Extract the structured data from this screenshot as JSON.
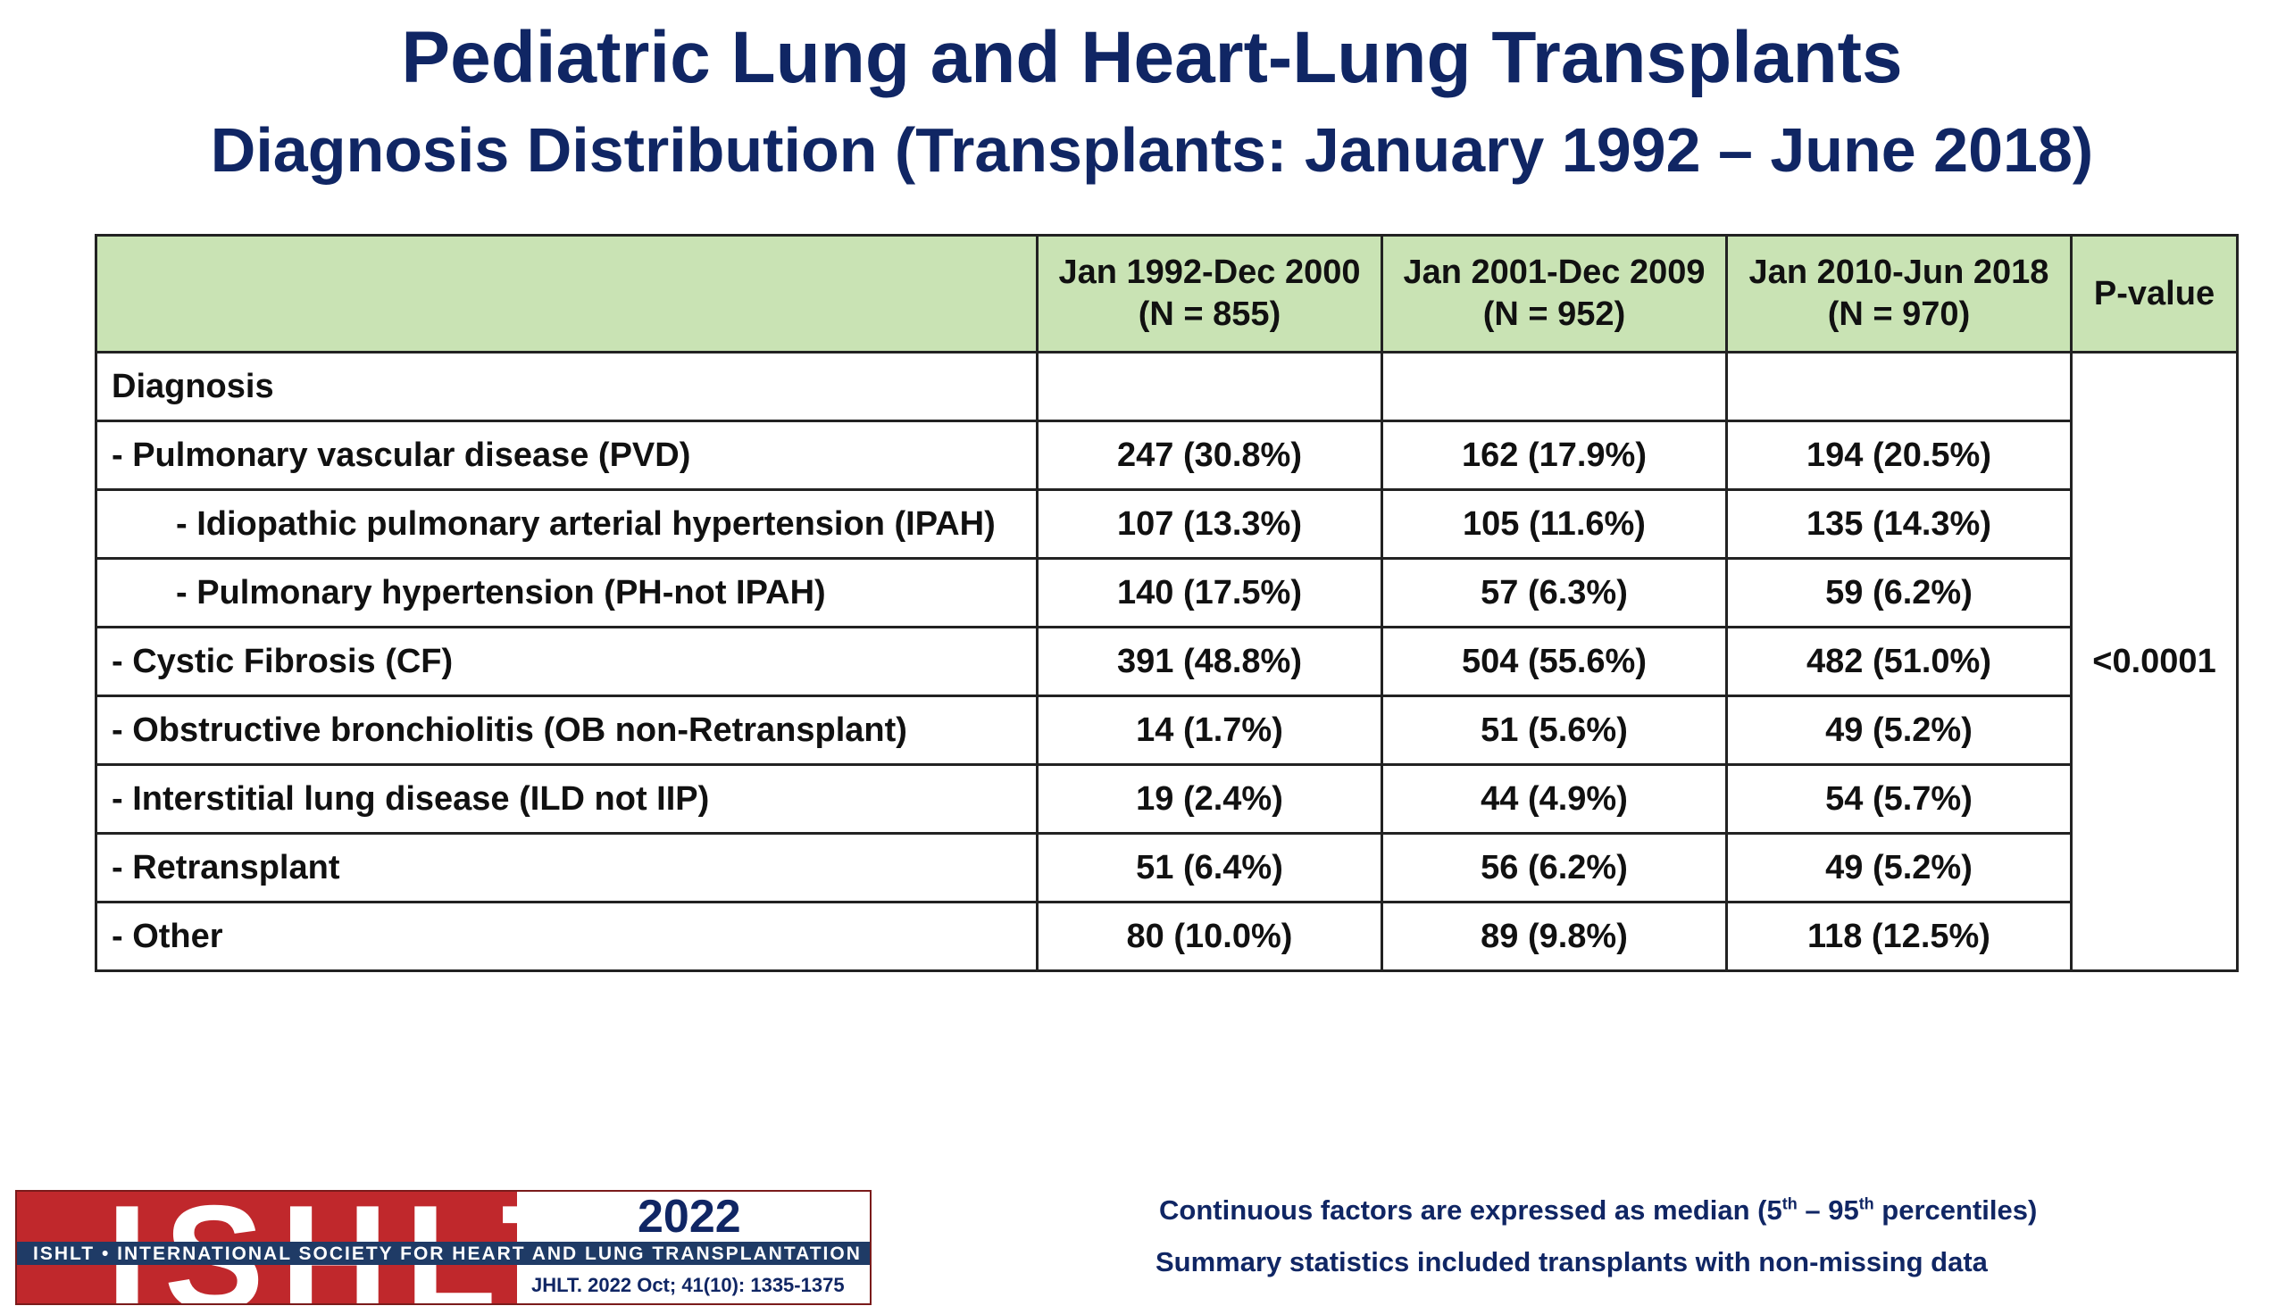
{
  "title": "Pediatric Lung and Heart-Lung Transplants",
  "subtitle": "Diagnosis Distribution (Transplants: January 1992 – June 2018)",
  "table": {
    "corner_header": "",
    "columns": [
      {
        "line1": "Jan 1992-Dec 2000",
        "line2": "(N = 855)"
      },
      {
        "line1": "Jan 2001-Dec 2009",
        "line2": "(N = 952)"
      },
      {
        "line1": "Jan 2010-Jun 2018",
        "line2": "(N = 970)"
      }
    ],
    "pvalue_header": "P-value",
    "section_label": "Diagnosis",
    "pvalue": "<0.0001",
    "rows": [
      {
        "label": "- Pulmonary vascular disease (PVD)",
        "indent": false,
        "values": [
          "247 (30.8%)",
          "162 (17.9%)",
          "194 (20.5%)"
        ]
      },
      {
        "label": "- Idiopathic pulmonary arterial hypertension (IPAH)",
        "indent": true,
        "values": [
          "107 (13.3%)",
          "105 (11.6%)",
          "135 (14.3%)"
        ]
      },
      {
        "label": "- Pulmonary hypertension (PH-not IPAH)",
        "indent": true,
        "values": [
          "140 (17.5%)",
          "57 (6.3%)",
          "59 (6.2%)"
        ]
      },
      {
        "label": "- Cystic Fibrosis (CF)",
        "indent": false,
        "values": [
          "391 (48.8%)",
          "504 (55.6%)",
          "482 (51.0%)"
        ]
      },
      {
        "label": "- Obstructive bronchiolitis (OB non-Retransplant)",
        "indent": false,
        "values": [
          "14 (1.7%)",
          "51 (5.6%)",
          "49 (5.2%)"
        ]
      },
      {
        "label": "- Interstitial lung disease (ILD not IIP)",
        "indent": false,
        "values": [
          "19 (2.4%)",
          "44 (4.9%)",
          "54 (5.7%)"
        ]
      },
      {
        "label": "- Retransplant",
        "indent": false,
        "values": [
          "51 (6.4%)",
          "56 (6.2%)",
          "49 (5.2%)"
        ]
      },
      {
        "label": "- Other",
        "indent": false,
        "values": [
          "80 (10.0%)",
          "89 (9.8%)",
          "118 (12.5%)"
        ]
      }
    ]
  },
  "footnotes": {
    "line1_a": "Continuous factors are expressed as median (5",
    "line1_sup1": "th",
    "line1_b": " – 95",
    "line1_sup2": "th",
    "line1_c": " percentiles)",
    "line2": "Summary statistics included transplants with non-missing data"
  },
  "logo": {
    "big_text": "ISHLT",
    "strip_text": "ISHLT • INTERNATIONAL SOCIETY FOR HEART AND LUNG TRANSPLANTATION",
    "year": "2022",
    "citation": "JHLT. 2022 Oct; 41(10): 1335-1375"
  },
  "colors": {
    "title": "#102664",
    "header_fill": "#c9e3b4",
    "logo_red": "#c0282c",
    "logo_navy": "#1f3b66"
  }
}
